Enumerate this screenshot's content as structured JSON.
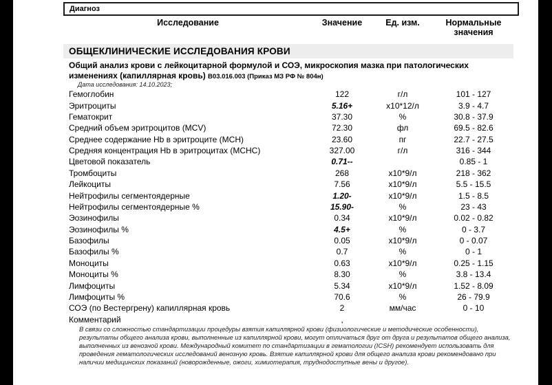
{
  "diagnosis": {
    "label": "Диагноз"
  },
  "header": {
    "col_test": "Исследование",
    "col_value": "Значение",
    "col_unit": "Ед. изм.",
    "col_normal": "Нормальные значения"
  },
  "section": {
    "title": "ОБЩЕКЛИНИЧЕСКИЕ ИССЛЕДОВАНИЯ КРОВИ",
    "subtitle": "Общий анализ крови с лейкоцитарной формулой и СОЭ, микроскопия мазка при патологических изменениях (капиллярная кровь)",
    "code": "В03.016.003 (Приказ МЗ РФ № 804н)",
    "date": "Дата исследования: 14.10.2023;"
  },
  "table": {
    "rows": [
      {
        "name": "Гемоглобин",
        "value": "122",
        "unit": "г/л",
        "normal": "101 - 127",
        "flagged": false
      },
      {
        "name": "Эритроциты",
        "value": "5.16+",
        "unit": "х10*12/л",
        "normal": "3.9 - 4.7",
        "flagged": true
      },
      {
        "name": "Гематокрит",
        "value": "37.30",
        "unit": "%",
        "normal": "30.8 - 37.9",
        "flagged": false
      },
      {
        "name": "Средний объем эритроцитов (MCV)",
        "value": "72.30",
        "unit": "фл",
        "normal": "69.5 - 82.6",
        "flagged": false
      },
      {
        "name": "Среднее содержание Hb в эритроците (MCH)",
        "value": "23.60",
        "unit": "пг",
        "normal": "22.7 - 27.5",
        "flagged": false
      },
      {
        "name": "Средняя концентрация Hb в эритроцитах (MCHC)",
        "value": "327.00",
        "unit": "г/л",
        "normal": "316 - 344",
        "flagged": false
      },
      {
        "name": "Цветовой показатель",
        "value": "0.71--",
        "unit": "",
        "normal": "0.85 - 1",
        "flagged": true
      },
      {
        "name": "Тромбоциты",
        "value": "268",
        "unit": "х10*9/л",
        "normal": "218 - 362",
        "flagged": false
      },
      {
        "name": "Лейкоциты",
        "value": "7.56",
        "unit": "х10*9/л",
        "normal": "5.5 - 15.5",
        "flagged": false
      },
      {
        "name": "Нейтрофилы сегментоядерные",
        "value": "1.20-",
        "unit": "х10*9/л",
        "normal": "1.5 - 8.5",
        "flagged": true
      },
      {
        "name": "Нейтрофилы сегментоядерные %",
        "value": "15.90-",
        "unit": "%",
        "normal": "23 - 43",
        "flagged": true
      },
      {
        "name": "Эозинофилы",
        "value": "0.34",
        "unit": "х10*9/л",
        "normal": "0.02 - 0.82",
        "flagged": false
      },
      {
        "name": "Эозинофилы %",
        "value": "4.5+",
        "unit": "%",
        "normal": "0 - 3.7",
        "flagged": true
      },
      {
        "name": "Базофилы",
        "value": "0.05",
        "unit": "х10*9/л",
        "normal": "0 - 0.07",
        "flagged": false
      },
      {
        "name": "Базофилы %",
        "value": "0.7",
        "unit": "%",
        "normal": "0 - 1",
        "flagged": false
      },
      {
        "name": "Моноциты",
        "value": "0.63",
        "unit": "х10*9/л",
        "normal": "0.25 - 1.15",
        "flagged": false
      },
      {
        "name": "Моноциты %",
        "value": "8.30",
        "unit": "%",
        "normal": "3.8 - 13.4",
        "flagged": false
      },
      {
        "name": "Лимфоциты",
        "value": "5.34",
        "unit": "х10*9/л",
        "normal": "1.52 - 8.09",
        "flagged": false
      },
      {
        "name": "Лимфоциты %",
        "value": "70.6",
        "unit": "%",
        "normal": "26 - 79.9",
        "flagged": false
      },
      {
        "name": "СОЭ (по Вестергрену) капиллярная кровь",
        "value": "2",
        "unit": "мм/час",
        "normal": "0 - 10",
        "flagged": false
      },
      {
        "name": "Комментарий",
        "value": ",",
        "unit": "",
        "normal": "",
        "flagged": false
      }
    ]
  },
  "comment": {
    "text": "В связи со сложностью стандартизации процедуры взятия капиллярной крови (физиологические и методические особенности), результаты общего анализа крови, выполненные из капиллярной крови, могут отличаться друг от друга и результатов общего анализа, выполненных из венозной крови. Международный комитет по стандартизации в гематологии (ICSH) рекомендует использовать для проведения гематологических исследований венозную кровь. Взятие капиллярной крови для общего анализа крови рекомендовано при наличии медицинских показаний (новорожденные, ожоги, химиотерапия, труднодоступные вены и другое)."
  },
  "colors": {
    "section_band": "#ededed",
    "frame": "#000000",
    "text": "#000000"
  }
}
